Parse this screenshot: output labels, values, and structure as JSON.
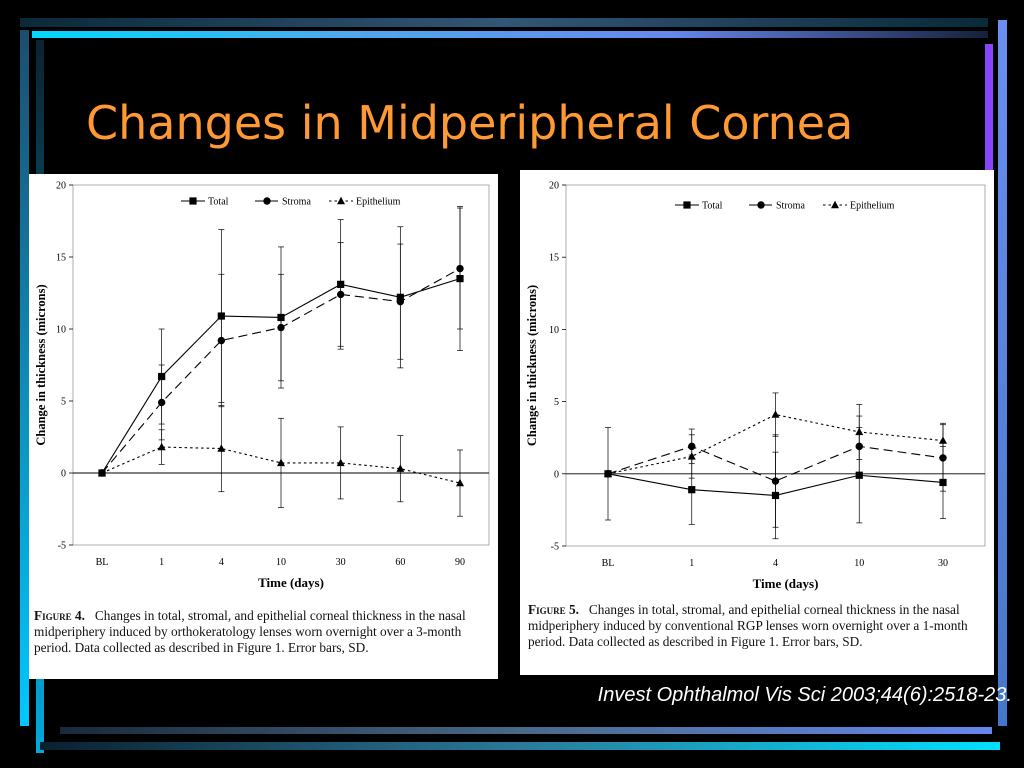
{
  "slide": {
    "title": "Changes in Midperipheral Cornea",
    "citation": "Invest Ophthalmol Vis Sci 2003;44(6):2518-23.",
    "colors": {
      "title": "#ff9933",
      "background": "#000000",
      "accent_cyan": "#00ccff",
      "accent_blue": "#6688ee",
      "accent_purple": "#8844ff"
    }
  },
  "chart_data": [
    {
      "type": "line",
      "figure_label": "Figure 4.",
      "caption": "Changes in total, stromal, and epithelial corneal thickness in the nasal midperiphery induced by orthokeratology lenses worn overnight over a 3-month period. Data collected as described in Figure 1. Error bars, SD.",
      "xlabel": "Time (days)",
      "ylabel": "Change in thickness (microns)",
      "categories": [
        "BL",
        "1",
        "4",
        "10",
        "30",
        "60",
        "90"
      ],
      "ylim": [
        -5,
        20
      ],
      "yticks": [
        -5,
        0,
        5,
        10,
        15,
        20
      ],
      "legend_position": "top-center",
      "series": [
        {
          "name": "Total",
          "marker": "square",
          "dash": "solid",
          "values": [
            0,
            6.7,
            10.9,
            10.8,
            13.1,
            12.2,
            13.5
          ],
          "sd": [
            0,
            3.3,
            6.0,
            4.9,
            4.5,
            4.9,
            5.0
          ]
        },
        {
          "name": "Stroma",
          "marker": "circle",
          "dash": "dashed",
          "values": [
            0,
            4.9,
            9.2,
            10.1,
            12.4,
            11.9,
            14.2
          ],
          "sd": [
            0,
            2.6,
            4.6,
            3.7,
            3.6,
            4.0,
            4.2
          ]
        },
        {
          "name": "Epithelium",
          "marker": "triangle",
          "dash": "dotted",
          "values": [
            0,
            1.8,
            1.7,
            0.7,
            0.7,
            0.3,
            -0.7
          ],
          "sd": [
            0,
            1.2,
            3.0,
            3.1,
            2.5,
            2.3,
            2.3
          ]
        }
      ]
    },
    {
      "type": "line",
      "figure_label": "Figure 5.",
      "caption": "Changes in total, stromal, and epithelial corneal thickness in the nasal midperiphery induced by conventional RGP lenses worn overnight over a 1-month period. Data collected as described in Figure 1. Error bars, SD.",
      "xlabel": "Time (days)",
      "ylabel": "Change in thickness (microns)",
      "categories": [
        "BL",
        "1",
        "4",
        "10",
        "30"
      ],
      "ylim": [
        -5,
        20
      ],
      "yticks": [
        -5,
        0,
        5,
        10,
        15,
        20
      ],
      "legend_position": "top-center",
      "series": [
        {
          "name": "Total",
          "marker": "square",
          "dash": "solid",
          "values": [
            0,
            -1.1,
            -1.5,
            -0.1,
            -0.6
          ],
          "sd": [
            3.2,
            2.4,
            3.0,
            3.3,
            2.5
          ]
        },
        {
          "name": "Stroma",
          "marker": "circle",
          "dash": "dashed",
          "values": [
            0,
            1.9,
            -0.5,
            1.9,
            1.1
          ],
          "sd": [
            0,
            1.2,
            3.2,
            2.1,
            2.3
          ]
        },
        {
          "name": "Epithelium",
          "marker": "triangle",
          "dash": "dotted",
          "values": [
            0,
            1.2,
            4.1,
            2.9,
            2.3
          ],
          "sd": [
            0,
            1.5,
            1.5,
            1.9,
            1.2
          ]
        }
      ]
    }
  ]
}
